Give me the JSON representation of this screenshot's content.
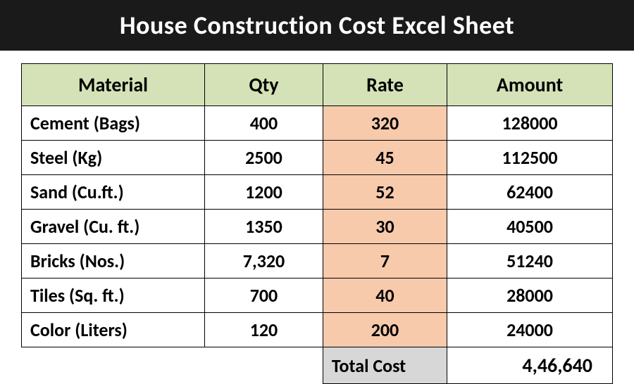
{
  "title": "House Construction Cost Excel Sheet",
  "table": {
    "type": "table",
    "columns": [
      "Material",
      "Qty",
      "Rate",
      "Amount"
    ],
    "column_widths_pct": [
      31,
      20,
      21,
      28
    ],
    "header_bg": "#d5e2b7",
    "rate_col_bg": "#f7caac",
    "border_color": "#000000",
    "header_fontsize": 28,
    "cell_fontsize": 26,
    "cell_fontweight": 700,
    "rows": [
      {
        "material": "Cement (Bags)",
        "qty": "400",
        "rate": "320",
        "amount": "128000"
      },
      {
        "material": "Steel (Kg)",
        "qty": "2500",
        "rate": "45",
        "amount": "112500"
      },
      {
        "material": "Sand (Cu.ft.)",
        "qty": "1200",
        "rate": "52",
        "amount": "62400"
      },
      {
        "material": "Gravel (Cu. ft.)",
        "qty": "1350",
        "rate": "30",
        "amount": "40500"
      },
      {
        "material": "Bricks (Nos.)",
        "qty": "7,320",
        "rate": "7",
        "amount": "51240"
      },
      {
        "material": "Tiles (Sq. ft.)",
        "qty": "700",
        "rate": "40",
        "amount": "28000"
      },
      {
        "material": "Color (Liters)",
        "qty": "120",
        "rate": "200",
        "amount": "24000"
      }
    ],
    "total": {
      "label": "Total Cost",
      "value": "4,46,640",
      "label_bg": "#d8d7d7",
      "value_bg": "#ffffff"
    }
  },
  "title_style": {
    "bg": "#1a1a1a",
    "color": "#ffffff",
    "fontsize": 36,
    "fontweight": 900
  }
}
